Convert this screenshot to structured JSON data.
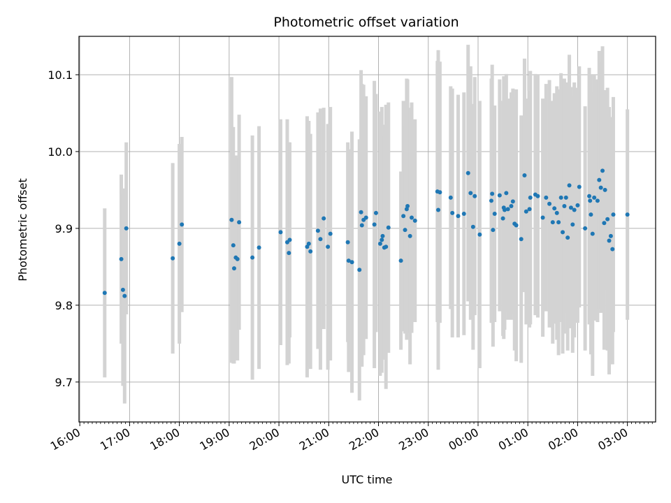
{
  "chart_data": {
    "type": "scatter",
    "title": "Photometric offset variation",
    "xlabel": "UTC time",
    "ylabel": "Photometric offset",
    "grid": true,
    "x_unit": "UTC time (night spanning midnight)",
    "x_tick_labels": [
      "16:00",
      "17:00",
      "18:00",
      "19:00",
      "20:00",
      "21:00",
      "22:00",
      "23:00",
      "00:00",
      "01:00",
      "02:00",
      "03:00"
    ],
    "xlim": [
      "15:59",
      "03:34"
    ],
    "y_ticks": [
      9.7,
      9.8,
      9.9,
      10.0,
      10.1
    ],
    "y_tick_labels": [
      "9.7",
      "9.8",
      "9.9",
      "10.0",
      "10.1"
    ],
    "ylim": [
      9.648,
      10.15
    ],
    "colors": {
      "point": "#1f77b4",
      "errorbar": "#d3d3d3",
      "grid": "#b0b0b0"
    },
    "series": [
      {
        "x": [
          "16:30",
          "16:50",
          "16:52",
          "16:54",
          "16:56",
          "17:52",
          "18:00",
          "18:03",
          "19:03",
          "19:05",
          "19:06",
          "19:08",
          "19:10",
          "19:12",
          "19:28",
          "19:36",
          "20:02",
          "20:10",
          "20:12",
          "20:13",
          "20:34",
          "20:36",
          "20:38",
          "20:47",
          "20:50",
          "20:54",
          "20:59",
          "21:02",
          "21:23",
          "21:24",
          "21:28",
          "21:37",
          "21:39",
          "21:40",
          "21:42",
          "21:45",
          "21:55",
          "21:57",
          "22:02",
          "22:04",
          "22:05",
          "22:07",
          "22:09",
          "22:12",
          "22:27",
          "22:30",
          "22:32",
          "22:34",
          "22:35",
          "22:38",
          "22:40",
          "22:44",
          "23:11",
          "23:12",
          "23:14",
          "23:27",
          "23:29",
          "23:36",
          "23:43",
          "23:48",
          "23:51",
          "23:54",
          "23:56",
          "24:02",
          "24:16",
          "24:17",
          "24:18",
          "24:20",
          "24:26",
          "24:30",
          "24:31",
          "24:32",
          "24:34",
          "24:36",
          "24:40",
          "24:42",
          "24:44",
          "24:46",
          "24:52",
          "24:56",
          "24:58",
          "25:02",
          "25:03",
          "25:09",
          "25:12",
          "25:18",
          "25:22",
          "25:26",
          "25:30",
          "25:32",
          "25:35",
          "25:37",
          "25:40",
          "25:42",
          "25:44",
          "25:46",
          "25:48",
          "25:50",
          "25:52",
          "25:54",
          "25:56",
          "26:00",
          "26:02",
          "26:09",
          "26:14",
          "26:15",
          "26:16",
          "26:18",
          "26:20",
          "26:24",
          "26:26",
          "26:28",
          "26:30",
          "26:32",
          "26:33",
          "26:36",
          "26:38",
          "26:40",
          "26:42",
          "26:43",
          "27:00"
        ],
        "y": [
          9.816,
          9.86,
          9.82,
          9.812,
          9.9,
          9.861,
          9.88,
          9.905,
          9.911,
          9.878,
          9.848,
          9.862,
          9.86,
          9.908,
          9.862,
          9.875,
          9.895,
          9.882,
          9.868,
          9.885,
          9.876,
          9.88,
          9.87,
          9.897,
          9.886,
          9.913,
          9.876,
          9.893,
          9.882,
          9.858,
          9.856,
          9.846,
          9.921,
          9.904,
          9.911,
          9.914,
          9.905,
          9.92,
          9.88,
          9.885,
          9.89,
          9.875,
          9.876,
          9.901,
          9.858,
          9.916,
          9.898,
          9.925,
          9.929,
          9.89,
          9.914,
          9.91,
          9.948,
          9.924,
          9.947,
          9.94,
          9.92,
          9.916,
          9.919,
          9.972,
          9.946,
          9.902,
          9.942,
          9.892,
          9.936,
          9.945,
          9.898,
          9.919,
          9.943,
          9.913,
          9.927,
          9.924,
          9.946,
          9.925,
          9.929,
          9.935,
          9.906,
          9.904,
          9.886,
          9.969,
          9.922,
          9.925,
          9.94,
          9.944,
          9.942,
          9.914,
          9.94,
          9.932,
          9.908,
          9.926,
          9.92,
          9.908,
          9.94,
          9.895,
          9.929,
          9.94,
          9.888,
          9.956,
          9.927,
          9.905,
          9.924,
          9.93,
          9.954,
          9.9,
          9.942,
          9.936,
          9.918,
          9.893,
          9.94,
          9.936,
          9.963,
          9.953,
          9.975,
          9.907,
          9.95,
          9.912,
          9.884,
          9.89,
          9.873,
          9.918,
          9.918
        ],
        "err": [
          0.11,
          0.11,
          0.125,
          0.14,
          0.112,
          0.124,
          0.13,
          0.114,
          0.186,
          0.154,
          0.124,
          0.133,
          0.132,
          0.14,
          0.159,
          0.158,
          0.147,
          0.16,
          0.144,
          0.127,
          0.17,
          0.16,
          0.153,
          0.154,
          0.17,
          0.144,
          0.16,
          0.165,
          0.13,
          0.145,
          0.17,
          0.17,
          0.185,
          0.184,
          0.176,
          0.158,
          0.187,
          0.155,
          0.172,
          0.173,
          0.145,
          0.146,
          0.185,
          0.163,
          0.116,
          0.15,
          0.135,
          0.17,
          0.165,
          0.167,
          0.15,
          0.132,
          0.17,
          0.208,
          0.17,
          0.145,
          0.162,
          0.158,
          0.158,
          0.167,
          0.165,
          0.16,
          0.155,
          0.174,
          0.159,
          0.168,
          0.152,
          0.141,
          0.151,
          0.153,
          0.171,
          0.156,
          0.155,
          0.144,
          0.148,
          0.147,
          0.165,
          0.177,
          0.161,
          0.152,
          0.147,
          0.154,
          0.165,
          0.157,
          0.158,
          0.155,
          0.148,
          0.161,
          0.158,
          0.15,
          0.165,
          0.173,
          0.162,
          0.158,
          0.166,
          0.15,
          0.147,
          0.17,
          0.157,
          0.167,
          0.166,
          0.153,
          0.157,
          0.159,
          0.167,
          0.15,
          0.182,
          0.185,
          0.16,
          0.158,
          0.168,
          0.163,
          0.162,
          0.165,
          0.13,
          0.171,
          0.174,
          0.155,
          0.15,
          0.153,
          0.137
        ]
      }
    ]
  }
}
